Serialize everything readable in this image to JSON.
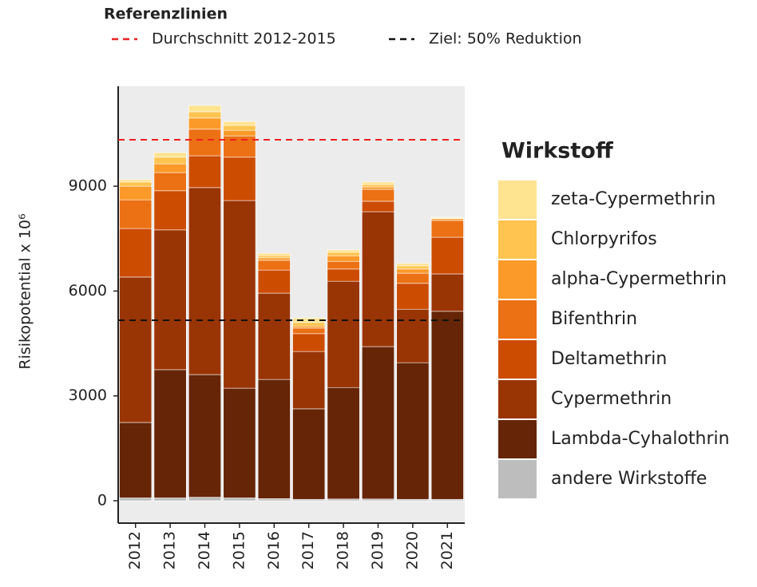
{
  "chart_data": {
    "type": "stacked_bar",
    "y_label": "Risikopotential  x 10⁶",
    "categories": [
      "2012",
      "2013",
      "2014",
      "2015",
      "2016",
      "2017",
      "2018",
      "2019",
      "2020",
      "2021"
    ],
    "legend_title": "Wirkstoff",
    "series": [
      {
        "name": "andere Wirkstoffe",
        "color": "#bdbdbd",
        "values": [
          80,
          80,
          100,
          80,
          60,
          40,
          50,
          50,
          40,
          40
        ]
      },
      {
        "name": "Lambda-Cyhalothrin",
        "color": "#662506",
        "values": [
          2160,
          3670,
          3510,
          3140,
          3410,
          2590,
          3190,
          4360,
          3910,
          5380
        ]
      },
      {
        "name": "Cypermethrin",
        "color": "#993404",
        "values": [
          4160,
          4000,
          5350,
          5370,
          2470,
          1640,
          3040,
          3860,
          1530,
          1070
        ]
      },
      {
        "name": "Deltamethrin",
        "color": "#cc4c02",
        "values": [
          1390,
          1120,
          910,
          1240,
          660,
          510,
          350,
          300,
          740,
          1050
        ]
      },
      {
        "name": "Bifenthrin",
        "color": "#ec7014",
        "values": [
          820,
          520,
          760,
          610,
          280,
          160,
          220,
          340,
          290,
          480
        ]
      },
      {
        "name": "alpha-Cypermethrin",
        "color": "#fb9a29",
        "values": [
          390,
          250,
          320,
          160,
          70,
          60,
          160,
          70,
          120,
          50
        ]
      },
      {
        "name": "Chlorpyrifos",
        "color": "#fec44f",
        "values": [
          120,
          190,
          180,
          140,
          60,
          100,
          100,
          70,
          90,
          20
        ]
      },
      {
        "name": "zeta-Cypermethrin",
        "color": "#fee391",
        "values": [
          70,
          130,
          180,
          110,
          70,
          130,
          70,
          70,
          70,
          20
        ]
      }
    ],
    "reference_title": "Referenzlinien",
    "reference_lines": [
      {
        "name": "Durchschnitt 2012-2015",
        "value": 10330,
        "color": "#ee2020"
      },
      {
        "name": "Ziel: 50% Reduktion",
        "value": 5165,
        "color": "#111111"
      }
    ],
    "ylim": [
      -640,
      11860
    ],
    "yticks": [
      0,
      3000,
      6000,
      9000
    ],
    "grid": false
  }
}
